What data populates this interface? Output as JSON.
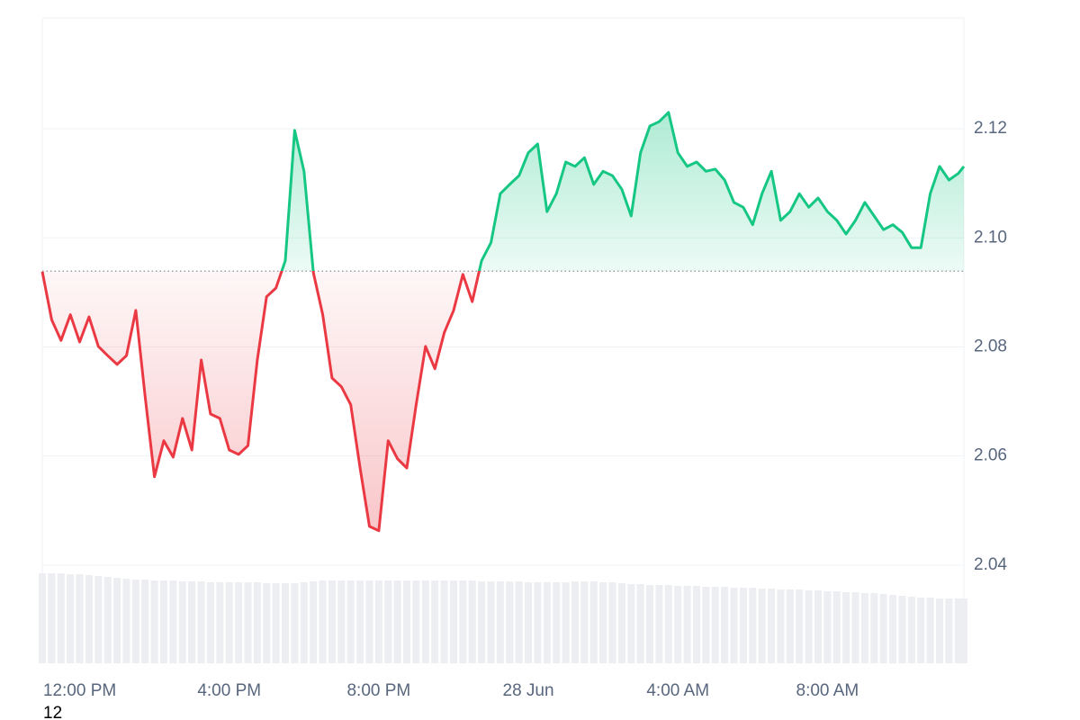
{
  "chart_data": {
    "type": "baseline-line",
    "stray_label": "12",
    "x": [
      11,
      11.25,
      11.5,
      11.75,
      12,
      12.25,
      12.5,
      12.75,
      13,
      13.25,
      13.5,
      13.75,
      14,
      14.25,
      14.5,
      14.75,
      15,
      15.25,
      15.5,
      15.75,
      16,
      16.25,
      16.5,
      16.75,
      17,
      17.25,
      17.5,
      17.75,
      18,
      18.25,
      18.5,
      18.75,
      19,
      19.25,
      19.5,
      19.75,
      20,
      20.25,
      20.5,
      20.75,
      21,
      21.25,
      21.5,
      21.75,
      22,
      22.25,
      22.5,
      22.75,
      23,
      23.25,
      23.5,
      23.75,
      24,
      24.25,
      24.5,
      24.75,
      25,
      25.25,
      25.5,
      25.75,
      26,
      26.25,
      26.5,
      26.75,
      27,
      27.25,
      27.5,
      27.75,
      28,
      28.25,
      28.5,
      28.75,
      29,
      29.25,
      29.5,
      29.75,
      30,
      30.25,
      30.5,
      30.75,
      31,
      31.25,
      31.5,
      31.75,
      32,
      32.25,
      32.5,
      32.75,
      33,
      33.25,
      33.5,
      33.75,
      34,
      34.25,
      34.5,
      34.75,
      35,
      35.25,
      35.5,
      35.65
    ],
    "values": [
      2.0938,
      2.085,
      2.0812,
      2.0859,
      2.0809,
      2.0855,
      2.0801,
      2.0784,
      2.0768,
      2.0784,
      2.0867,
      2.071,
      2.0562,
      2.0628,
      2.0598,
      2.0669,
      2.0611,
      2.0776,
      2.0677,
      2.0669,
      2.0611,
      2.0603,
      2.0619,
      2.0776,
      2.0892,
      2.0908,
      2.0958,
      2.1197,
      2.1122,
      2.0936,
      2.0859,
      2.0743,
      2.0727,
      2.0694,
      2.0578,
      2.0471,
      2.0463,
      2.0628,
      2.0595,
      2.0578,
      2.0694,
      2.0801,
      2.076,
      2.0826,
      2.0867,
      2.0933,
      2.0883,
      2.0958,
      2.0991,
      2.1081,
      2.1098,
      2.1114,
      2.1156,
      2.1172,
      2.1048,
      2.1081,
      2.1139,
      2.1131,
      2.1147,
      2.1098,
      2.1122,
      2.1114,
      2.1089,
      2.104,
      2.1156,
      2.1205,
      2.1213,
      2.123,
      2.1156,
      2.1131,
      2.1139,
      2.1122,
      2.1126,
      2.1106,
      2.1065,
      2.1056,
      2.1024,
      2.1081,
      2.1122,
      2.1032,
      2.1048,
      2.1081,
      2.1056,
      2.1073,
      2.1048,
      2.1032,
      2.1007,
      2.1032,
      2.1065,
      2.104,
      2.1015,
      2.1024,
      2.101,
      2.0982,
      2.0982,
      2.1081,
      2.1131,
      2.1106,
      2.1118,
      2.1131
    ],
    "baseline": 2.0939,
    "up_color": "#16c784",
    "down_color": "#ea3943",
    "volume": {
      "color": "#eceef2",
      "ylim": [
        0,
        100
      ],
      "values": [
        100,
        100,
        100,
        99,
        99,
        98,
        97,
        96,
        95,
        94,
        93,
        93,
        92,
        92,
        92,
        91,
        91,
        91,
        90,
        90,
        90,
        90,
        90,
        90,
        89,
        89,
        89,
        89,
        90,
        91,
        92,
        92,
        92,
        92,
        92,
        92,
        92,
        92,
        92,
        92,
        92,
        92,
        92,
        92,
        92,
        92,
        92,
        91,
        91,
        91,
        91,
        91,
        90,
        90,
        90,
        90,
        90,
        91,
        91,
        91,
        90,
        90,
        89,
        88,
        88,
        87,
        87,
        87,
        86,
        86,
        86,
        85,
        85,
        85,
        84,
        84,
        84,
        83,
        83,
        82,
        82,
        82,
        81,
        81,
        80,
        80,
        79,
        79,
        78,
        78,
        77,
        76,
        75,
        74,
        73,
        73,
        72,
        72,
        72,
        72
      ]
    },
    "xlim": [
      11,
      35.65
    ],
    "ylim": [
      2.022,
      2.1403
    ],
    "xticks": [
      {
        "value": 12,
        "label": "12:00 PM"
      },
      {
        "value": 16,
        "label": "4:00 PM"
      },
      {
        "value": 20,
        "label": "8:00 PM"
      },
      {
        "value": 24,
        "label": "28 Jun"
      },
      {
        "value": 28,
        "label": "4:00 AM"
      },
      {
        "value": 32,
        "label": "8:00 AM"
      }
    ],
    "yticks": [
      2.04,
      2.06,
      2.08,
      {
        "value": 2.1,
        "label": "2.10"
      },
      2.12
    ],
    "grid": true
  }
}
